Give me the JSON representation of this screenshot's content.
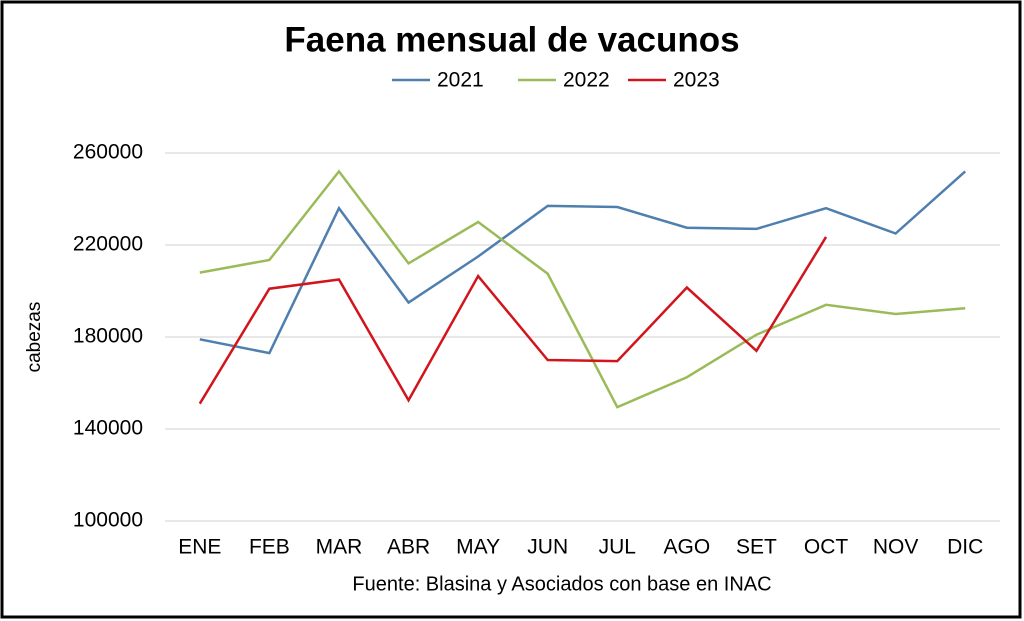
{
  "chart_data": {
    "type": "line",
    "title": "Faena mensual de vacunos",
    "y_label": "cabezas",
    "source": "Fuente: Blasina y Asociados con base en INAC",
    "categories": [
      "ENE",
      "FEB",
      "MAR",
      "ABR",
      "MAY",
      "JUN",
      "JUL",
      "AGO",
      "SET",
      "OCT",
      "NOV",
      "DIC"
    ],
    "series": [
      {
        "name": "2021",
        "color": "#4f7fae",
        "values": [
          179000,
          173000,
          236000,
          195000,
          215000,
          237000,
          236500,
          227500,
          227000,
          236000,
          225000,
          252000
        ]
      },
      {
        "name": "2022",
        "color": "#9bbb59",
        "values": [
          208000,
          213500,
          252000,
          212000,
          230000,
          207500,
          149500,
          162500,
          181000,
          194000,
          190000,
          192500
        ]
      },
      {
        "name": "2023",
        "color": "#d2141c",
        "values": [
          151000,
          201000,
          205000,
          152500,
          206500,
          170000,
          169500,
          201500,
          174000,
          223500,
          null,
          null
        ]
      }
    ],
    "ylim": [
      100000,
      260000
    ],
    "yticks": [
      100000,
      140000,
      180000,
      220000,
      260000
    ],
    "grid": true,
    "legend": "top"
  }
}
